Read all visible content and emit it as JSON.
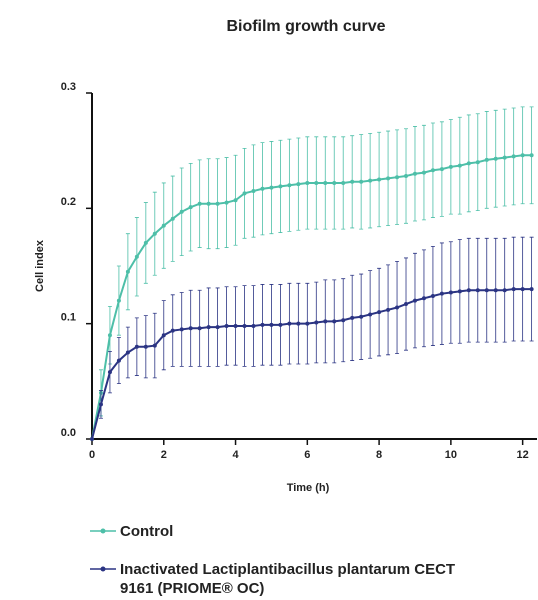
{
  "chart_data": {
    "type": "line",
    "title": "Biofilm growth curve",
    "x_label": "Time (h)",
    "y_label": "Cell index",
    "x": [
      0,
      0.25,
      0.5,
      0.75,
      1,
      1.25,
      1.5,
      1.75,
      2,
      2.25,
      2.5,
      2.75,
      3,
      3.25,
      3.5,
      3.75,
      4,
      4.25,
      4.5,
      4.75,
      5,
      5.25,
      5.5,
      5.75,
      6,
      6.25,
      6.5,
      6.75,
      7,
      7.25,
      7.5,
      7.75,
      8,
      8.25,
      8.5,
      8.75,
      9,
      9.25,
      9.5,
      9.75,
      10,
      10.25,
      10.5,
      10.75,
      11,
      11.25,
      11.5,
      11.75,
      12,
      12.25
    ],
    "series": [
      {
        "name": "Control",
        "color": "#4dbfa8",
        "values": [
          0,
          0.04,
          0.09,
          0.12,
          0.145,
          0.158,
          0.17,
          0.178,
          0.185,
          0.191,
          0.197,
          0.201,
          0.204,
          0.204,
          0.204,
          0.205,
          0.207,
          0.213,
          0.215,
          0.217,
          0.218,
          0.219,
          0.22,
          0.221,
          0.222,
          0.222,
          0.222,
          0.222,
          0.222,
          0.223,
          0.223,
          0.224,
          0.225,
          0.226,
          0.227,
          0.228,
          0.23,
          0.231,
          0.233,
          0.234,
          0.236,
          0.237,
          0.239,
          0.24,
          0.242,
          0.243,
          0.244,
          0.245,
          0.246,
          0.246
        ],
        "errors": [
          0,
          0.02,
          0.025,
          0.03,
          0.033,
          0.034,
          0.035,
          0.036,
          0.037,
          0.037,
          0.038,
          0.038,
          0.038,
          0.039,
          0.039,
          0.039,
          0.039,
          0.039,
          0.04,
          0.04,
          0.04,
          0.04,
          0.04,
          0.04,
          0.04,
          0.04,
          0.04,
          0.04,
          0.04,
          0.04,
          0.041,
          0.041,
          0.041,
          0.041,
          0.041,
          0.041,
          0.041,
          0.041,
          0.041,
          0.041,
          0.041,
          0.042,
          0.042,
          0.042,
          0.042,
          0.042,
          0.042,
          0.042,
          0.042,
          0.042
        ]
      },
      {
        "name": "Inactivated Lactiplantibacillus plantarum CECT 9161 (PRIOME® OC)",
        "color": "#2b3483",
        "values": [
          0,
          0.03,
          0.058,
          0.068,
          0.075,
          0.08,
          0.08,
          0.081,
          0.09,
          0.094,
          0.095,
          0.096,
          0.096,
          0.097,
          0.097,
          0.098,
          0.098,
          0.098,
          0.098,
          0.099,
          0.099,
          0.099,
          0.1,
          0.1,
          0.1,
          0.101,
          0.102,
          0.102,
          0.103,
          0.105,
          0.106,
          0.108,
          0.11,
          0.112,
          0.114,
          0.117,
          0.12,
          0.122,
          0.124,
          0.126,
          0.127,
          0.128,
          0.129,
          0.129,
          0.129,
          0.129,
          0.129,
          0.13,
          0.13,
          0.13
        ],
        "errors": [
          0,
          0.012,
          0.018,
          0.02,
          0.022,
          0.025,
          0.027,
          0.028,
          0.03,
          0.031,
          0.032,
          0.033,
          0.033,
          0.034,
          0.034,
          0.034,
          0.034,
          0.035,
          0.035,
          0.035,
          0.035,
          0.035,
          0.035,
          0.035,
          0.035,
          0.035,
          0.036,
          0.036,
          0.036,
          0.037,
          0.037,
          0.038,
          0.038,
          0.039,
          0.04,
          0.04,
          0.041,
          0.042,
          0.043,
          0.044,
          0.044,
          0.045,
          0.045,
          0.045,
          0.045,
          0.045,
          0.045,
          0.045,
          0.045,
          0.045
        ]
      }
    ],
    "xlim": [
      0,
      12.4
    ],
    "ylim": [
      0,
      0.3
    ],
    "xticks": [
      0,
      2,
      4,
      6,
      8,
      10,
      12
    ],
    "yticks": [
      {
        "value": 0,
        "label": "0.0"
      },
      0.1,
      0.2,
      0.3
    ]
  }
}
